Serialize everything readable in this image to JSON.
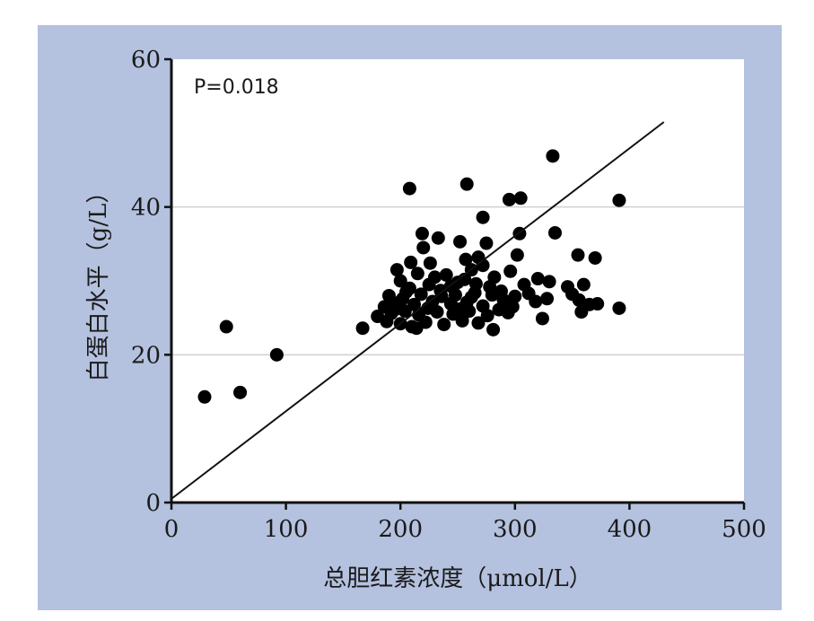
{
  "colors": {
    "panel_background": "#b4c1df",
    "plot_background": "#ffffff",
    "points": "#000000",
    "gridline": "#d0d0d0"
  },
  "chart_data": {
    "type": "scatter",
    "title": "",
    "xlabel": "总胆红素浓度（μmol/L）",
    "ylabel": "白蛋白水平（g/L）",
    "xlim": [
      0,
      500
    ],
    "ylim": [
      0,
      60
    ],
    "x_ticks": [
      "0",
      "100",
      "200",
      "300",
      "400",
      "500"
    ],
    "y_ticks": [
      "0",
      "20",
      "40",
      "60"
    ],
    "grid": "horizontal",
    "annotation": "P=0.018",
    "trendline": {
      "x": [
        0,
        430
      ],
      "y": [
        0.5,
        51.5
      ]
    },
    "points": [
      [
        29,
        14.3
      ],
      [
        48,
        23.8
      ],
      [
        60,
        14.9
      ],
      [
        92,
        20
      ],
      [
        167,
        23.6
      ],
      [
        208,
        42.5
      ],
      [
        258,
        43.1
      ],
      [
        295,
        41
      ],
      [
        305,
        41.2
      ],
      [
        333,
        46.9
      ],
      [
        391,
        40.9
      ],
      [
        272,
        38.6
      ],
      [
        304,
        36.4
      ],
      [
        335,
        36.5
      ],
      [
        219,
        36.4
      ],
      [
        233,
        35.8
      ],
      [
        252,
        35.3
      ],
      [
        275,
        35.1
      ],
      [
        220,
        34.5
      ],
      [
        302,
        33.5
      ],
      [
        355,
        33.5
      ],
      [
        370,
        33.1
      ],
      [
        209,
        32.5
      ],
      [
        257,
        32.9
      ],
      [
        268,
        33.2
      ],
      [
        197,
        31.5
      ],
      [
        215,
        31
      ],
      [
        240,
        30.8
      ],
      [
        262,
        31.5
      ],
      [
        282,
        30.5
      ],
      [
        296,
        31.3
      ],
      [
        320,
        30.3
      ],
      [
        330,
        29.9
      ],
      [
        346,
        29.2
      ],
      [
        360,
        29.5
      ],
      [
        200,
        30
      ],
      [
        225,
        29.5
      ],
      [
        250,
        29.8
      ],
      [
        278,
        29.2
      ],
      [
        308,
        29.5
      ],
      [
        190,
        28
      ],
      [
        205,
        28.5
      ],
      [
        218,
        28.2
      ],
      [
        235,
        28.7
      ],
      [
        248,
        28.1
      ],
      [
        265,
        28.4
      ],
      [
        288,
        28.6
      ],
      [
        300,
        27.9
      ],
      [
        312,
        28.3
      ],
      [
        350,
        28.2
      ],
      [
        186,
        26.5
      ],
      [
        196,
        27
      ],
      [
        212,
        26.8
      ],
      [
        228,
        27.2
      ],
      [
        244,
        26.9
      ],
      [
        258,
        27.1
      ],
      [
        272,
        26.6
      ],
      [
        290,
        27.4
      ],
      [
        318,
        27.2
      ],
      [
        328,
        27.6
      ],
      [
        356,
        27.4
      ],
      [
        365,
        26.8
      ],
      [
        372,
        26.9
      ],
      [
        391,
        26.3
      ],
      [
        358,
        25.8
      ],
      [
        180,
        25.2
      ],
      [
        192,
        25.6
      ],
      [
        204,
        25.9
      ],
      [
        216,
        25.4
      ],
      [
        232,
        25.8
      ],
      [
        246,
        25.5
      ],
      [
        260,
        25.9
      ],
      [
        276,
        25.3
      ],
      [
        294,
        25.7
      ],
      [
        324,
        24.9
      ],
      [
        188,
        24.5
      ],
      [
        200,
        24.2
      ],
      [
        210,
        23.8
      ],
      [
        222,
        24.4
      ],
      [
        238,
        24.1
      ],
      [
        254,
        24.6
      ],
      [
        268,
        24.3
      ],
      [
        281,
        23.4
      ],
      [
        214,
        23.6
      ],
      [
        195,
        26.1
      ],
      [
        224,
        26.3
      ],
      [
        236,
        27.9
      ],
      [
        252,
        26.2
      ],
      [
        266,
        29.6
      ],
      [
        286,
        26.1
      ],
      [
        202,
        27.6
      ],
      [
        230,
        30.5
      ],
      [
        244,
        29.3
      ],
      [
        262,
        27.8
      ],
      [
        280,
        28.1
      ],
      [
        298,
        26.5
      ],
      [
        208,
        29
      ],
      [
        226,
        32.4
      ],
      [
        256,
        30.2
      ],
      [
        272,
        32.1
      ]
    ]
  }
}
